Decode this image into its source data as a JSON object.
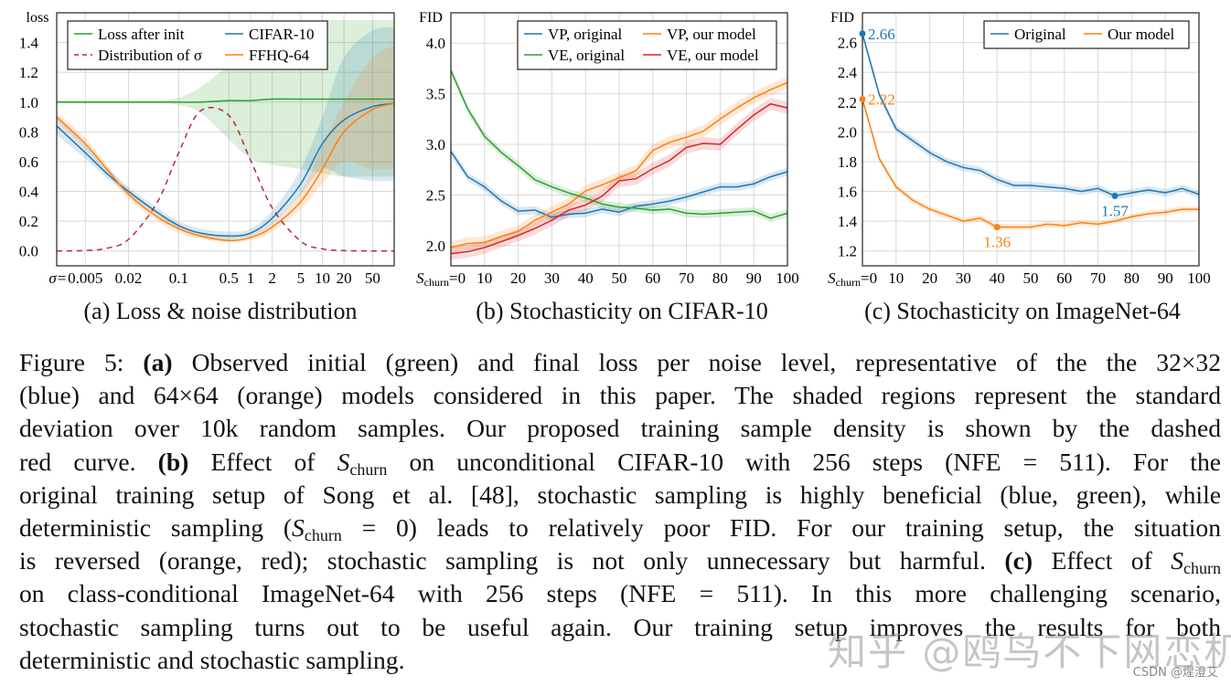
{
  "colors": {
    "blue": "#1f77b4",
    "orange": "#ff7f0e",
    "green": "#2ca02c",
    "red": "#d62728",
    "dashed_red": "#b8283a",
    "grid": "#d8d8d8"
  },
  "chart_data": [
    {
      "id": "a",
      "type": "line",
      "ylabel": "loss",
      "xscale": "log",
      "xlabel_prefix": "σ=",
      "xlim": [
        0.002,
        100
      ],
      "ylim": [
        -0.1,
        1.6
      ],
      "grid": true,
      "legend": "top-left",
      "xticks": [
        0.005,
        0.02,
        0.1,
        0.5,
        1,
        2,
        5,
        10,
        20,
        50
      ],
      "xtick_labels": [
        "0.005",
        "0.02",
        "0.1",
        "0.5",
        "1",
        "2",
        "5",
        "10",
        "20",
        "50"
      ],
      "yticks": [
        0,
        0.2,
        0.4,
        0.6,
        0.8,
        1.0,
        1.2,
        1.4
      ],
      "ytick_labels": [
        "0.0",
        "0.2",
        "0.4",
        "0.6",
        "0.8",
        "1.0",
        "1.2",
        "1.4"
      ],
      "x": [
        0.002,
        0.005,
        0.01,
        0.02,
        0.05,
        0.1,
        0.2,
        0.5,
        1,
        2,
        5,
        10,
        20,
        50,
        100
      ],
      "series": [
        {
          "name": "Loss after init",
          "color": "green",
          "dash": false,
          "values": [
            1,
            1,
            1,
            1,
            1,
            1,
            1.0,
            1.01,
            1.01,
            1.02,
            1.02,
            1.02,
            1.02,
            1.02,
            1.02
          ],
          "lower": [
            0.99,
            0.99,
            0.99,
            0.99,
            0.99,
            0.98,
            0.93,
            0.75,
            0.62,
            0.58,
            0.55,
            0.52,
            0.5,
            0.5,
            0.5
          ],
          "upper": [
            1.01,
            1.01,
            1.01,
            1.01,
            1.01,
            1.03,
            1.1,
            1.25,
            1.4,
            1.5,
            1.52,
            1.55,
            1.55,
            1.55,
            1.55
          ]
        },
        {
          "name": "CIFAR-10",
          "color": "blue",
          "dash": false,
          "values": [
            0.84,
            0.66,
            0.52,
            0.4,
            0.26,
            0.17,
            0.12,
            0.1,
            0.12,
            0.22,
            0.45,
            0.72,
            0.88,
            0.97,
            0.99
          ],
          "lower": [
            0.78,
            0.62,
            0.49,
            0.38,
            0.24,
            0.15,
            0.1,
            0.08,
            0.1,
            0.18,
            0.38,
            0.55,
            0.5,
            0.47,
            0.47
          ],
          "upper": [
            0.9,
            0.71,
            0.56,
            0.43,
            0.29,
            0.2,
            0.15,
            0.13,
            0.15,
            0.27,
            0.55,
            0.9,
            1.3,
            1.48,
            1.5
          ]
        },
        {
          "name": "FFHQ-64",
          "color": "orange",
          "dash": false,
          "values": [
            0.9,
            0.72,
            0.55,
            0.38,
            0.23,
            0.15,
            0.1,
            0.07,
            0.09,
            0.16,
            0.33,
            0.55,
            0.8,
            0.95,
            0.99
          ],
          "lower": [
            0.87,
            0.69,
            0.52,
            0.35,
            0.2,
            0.12,
            0.08,
            0.06,
            0.07,
            0.13,
            0.28,
            0.45,
            0.6,
            0.55,
            0.55
          ],
          "upper": [
            0.93,
            0.76,
            0.58,
            0.41,
            0.26,
            0.18,
            0.12,
            0.09,
            0.11,
            0.19,
            0.4,
            0.7,
            1.0,
            1.3,
            1.38
          ]
        },
        {
          "name": "Distribution of σ",
          "color": "dashed_red",
          "dash": true,
          "values": [
            0,
            0.003,
            0.018,
            0.078,
            0.325,
            0.66,
            0.94,
            0.91,
            0.61,
            0.29,
            0.065,
            0.014,
            0.002,
            0,
            0
          ]
        }
      ],
      "legend_order": [
        0,
        1,
        3,
        2
      ]
    },
    {
      "id": "b",
      "type": "line",
      "ylabel": "FID",
      "xscale": "linear",
      "xlabel_prefix": "S",
      "xlabel_sub": "churn",
      "xlim": [
        0,
        100
      ],
      "ylim": [
        1.8,
        4.3
      ],
      "grid": true,
      "legend": "top-right",
      "xticks": [
        0,
        10,
        20,
        30,
        40,
        50,
        60,
        70,
        80,
        90,
        100
      ],
      "xtick_labels": [
        "=0",
        "10",
        "20",
        "30",
        "40",
        "50",
        "60",
        "70",
        "80",
        "90",
        "100"
      ],
      "yticks": [
        2.0,
        2.5,
        3.0,
        3.5,
        4.0
      ],
      "ytick_labels": [
        "2.0",
        "2.5",
        "3.0",
        "3.5",
        "4.0"
      ],
      "x": [
        0,
        5,
        10,
        15,
        20,
        25,
        30,
        35,
        40,
        45,
        50,
        55,
        60,
        65,
        70,
        75,
        80,
        85,
        90,
        95,
        100
      ],
      "series": [
        {
          "name": "VP, original",
          "color": "blue",
          "band": 0.04,
          "values": [
            2.93,
            2.68,
            2.58,
            2.44,
            2.34,
            2.35,
            2.28,
            2.31,
            2.32,
            2.36,
            2.33,
            2.39,
            2.41,
            2.44,
            2.48,
            2.53,
            2.58,
            2.58,
            2.61,
            2.68,
            2.73
          ]
        },
        {
          "name": "VP, our model",
          "color": "orange",
          "band": 0.06,
          "values": [
            1.98,
            2.02,
            2.03,
            2.09,
            2.14,
            2.25,
            2.33,
            2.41,
            2.54,
            2.6,
            2.67,
            2.74,
            2.94,
            3.02,
            3.07,
            3.13,
            3.25,
            3.36,
            3.46,
            3.54,
            3.61
          ]
        },
        {
          "name": "VE, original",
          "color": "green",
          "band": 0.04,
          "values": [
            3.73,
            3.35,
            3.08,
            2.92,
            2.79,
            2.65,
            2.58,
            2.52,
            2.47,
            2.41,
            2.38,
            2.37,
            2.35,
            2.36,
            2.32,
            2.31,
            2.32,
            2.33,
            2.34,
            2.27,
            2.32
          ]
        },
        {
          "name": "VE, our model",
          "color": "red",
          "band": 0.06,
          "values": [
            1.92,
            1.94,
            1.98,
            2.04,
            2.1,
            2.17,
            2.25,
            2.35,
            2.4,
            2.49,
            2.64,
            2.66,
            2.76,
            2.84,
            2.97,
            3.01,
            3.0,
            3.15,
            3.29,
            3.4,
            3.36
          ]
        }
      ],
      "legend_order": [
        0,
        1,
        2,
        3
      ]
    },
    {
      "id": "c",
      "type": "line",
      "ylabel": "FID",
      "xscale": "linear",
      "xlabel_prefix": "S",
      "xlabel_sub": "churn",
      "xlim": [
        0,
        100
      ],
      "ylim": [
        1.1,
        2.8
      ],
      "grid": true,
      "legend": "top-right",
      "xticks": [
        0,
        10,
        20,
        30,
        40,
        50,
        60,
        70,
        80,
        90,
        100
      ],
      "xtick_labels": [
        "=0",
        "10",
        "20",
        "30",
        "40",
        "50",
        "60",
        "70",
        "80",
        "90",
        "100"
      ],
      "yticks": [
        1.2,
        1.4,
        1.6,
        1.8,
        2.0,
        2.2,
        2.4,
        2.6
      ],
      "ytick_labels": [
        "1.2",
        "1.4",
        "1.6",
        "1.8",
        "2.0",
        "2.2",
        "2.4",
        "2.6"
      ],
      "x": [
        0,
        5,
        10,
        15,
        20,
        25,
        30,
        35,
        40,
        45,
        50,
        55,
        60,
        65,
        70,
        75,
        80,
        85,
        90,
        95,
        100
      ],
      "series": [
        {
          "name": "Original",
          "color": "blue",
          "band": 0.025,
          "values": [
            2.66,
            2.25,
            2.02,
            1.94,
            1.86,
            1.8,
            1.76,
            1.74,
            1.68,
            1.64,
            1.64,
            1.63,
            1.62,
            1.6,
            1.62,
            1.57,
            1.59,
            1.61,
            1.59,
            1.62,
            1.58
          ]
        },
        {
          "name": "Our model",
          "color": "orange",
          "band": 0.02,
          "values": [
            2.22,
            1.82,
            1.63,
            1.54,
            1.48,
            1.44,
            1.4,
            1.42,
            1.36,
            1.36,
            1.36,
            1.38,
            1.37,
            1.39,
            1.38,
            1.4,
            1.43,
            1.45,
            1.46,
            1.48,
            1.48
          ]
        }
      ],
      "legend_order": [
        0,
        1
      ],
      "annotations": [
        {
          "x": 0,
          "y": 2.66,
          "label": "2.66",
          "color": "blue",
          "pos": "right"
        },
        {
          "x": 0,
          "y": 2.22,
          "label": "2.22",
          "color": "orange",
          "pos": "right"
        },
        {
          "x": 75,
          "y": 1.57,
          "label": "1.57",
          "color": "blue",
          "pos": "below"
        },
        {
          "x": 40,
          "y": 1.36,
          "label": "1.36",
          "color": "orange",
          "pos": "below"
        }
      ]
    }
  ],
  "subcaptions": [
    "(a) Loss & noise distribution",
    "(b) Stochasticity on CIFAR-10",
    "(c) Stochasticity on ImageNet-64"
  ],
  "caption": {
    "lines": [
      [
        {
          "t": "Figure 5: "
        },
        {
          "t": "(a)",
          "s": "b"
        },
        {
          "t": " Observed initial (green) and final loss per noise level, representative of the the 32×32"
        }
      ],
      [
        {
          "t": "(blue) and 64×64 (orange) models considered in this paper. The shaded regions represent the standard"
        }
      ],
      [
        {
          "t": "deviation over 10k random samples. Our proposed training sample density is shown by the dashed"
        }
      ],
      [
        {
          "t": "red curve. "
        },
        {
          "t": "(b)",
          "s": "b"
        },
        {
          "t": " Effect of "
        },
        {
          "t": "S",
          "s": "i"
        },
        {
          "t": "churn",
          "s": "sub"
        },
        {
          "t": " on unconditional CIFAR-10 with 256 steps (NFE = 511). For the"
        }
      ],
      [
        {
          "t": "original training setup of Song et al. [48], stochastic sampling is highly beneficial (blue, green), while"
        }
      ],
      [
        {
          "t": "deterministic sampling ("
        },
        {
          "t": "S",
          "s": "i"
        },
        {
          "t": "churn",
          "s": "sub"
        },
        {
          "t": " = 0) leads to relatively poor FID. For our training setup, the situation"
        }
      ],
      [
        {
          "t": "is reversed (orange, red); stochastic sampling is not only unnecessary but harmful. "
        },
        {
          "t": "(c)",
          "s": "b"
        },
        {
          "t": " Effect of "
        },
        {
          "t": "S",
          "s": "i"
        },
        {
          "t": "churn",
          "s": "sub"
        }
      ],
      [
        {
          "t": "on class-conditional ImageNet-64 with 256 steps (NFE = 511). In this more challenging scenario,"
        }
      ],
      [
        {
          "t": "stochastic sampling turns out to be useful again. Our training setup improves the results for both"
        }
      ],
      [
        {
          "t": "deterministic and stochastic sampling."
        }
      ]
    ]
  },
  "watermark": "知乎 @鸥鸟不下网恋机",
  "source_mark": "CSDN @煋澄艾"
}
